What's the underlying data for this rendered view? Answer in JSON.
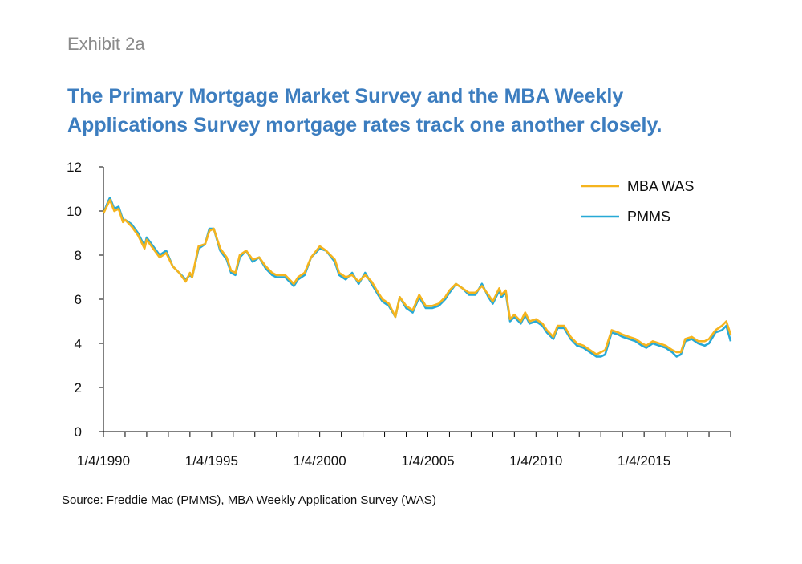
{
  "header": {
    "exhibit_label": "Exhibit 2a",
    "title_line1": "The Primary Mortgage Market Survey and the MBA Weekly",
    "title_line2": "Applications Survey mortgage rates track one another closely."
  },
  "footer": {
    "source": "Source: Freddie Mac (PMMS), MBA Weekly Application Survey (WAS)"
  },
  "colors": {
    "exhibit": "#8a8a8a",
    "rule": "#8cc63f",
    "title": "#3c7dbf",
    "mba_was": "#f5b41e",
    "pmms": "#27a9d6"
  },
  "chart_data": {
    "type": "line",
    "title": "",
    "xlabel": "",
    "ylabel": "",
    "ylim": [
      0,
      12
    ],
    "yticks": [
      0,
      2,
      4,
      6,
      8,
      10,
      12
    ],
    "xlim": [
      1990.0,
      2019.0
    ],
    "xtick_labels": [
      "1/4/1990",
      "1/4/1995",
      "1/4/2000",
      "1/4/2005",
      "1/4/2010",
      "1/4/2015"
    ],
    "xtick_values": [
      1990,
      1995,
      2000,
      2005,
      2010,
      2015
    ],
    "legend_position": "top-right",
    "grid": false,
    "series": [
      {
        "name": "MBA WAS",
        "color": "#f5b41e",
        "x": [
          1990.0,
          1990.2,
          1990.3,
          1990.5,
          1990.7,
          1990.9,
          1991.0,
          1991.3,
          1991.6,
          1991.9,
          1992.0,
          1992.3,
          1992.6,
          1992.9,
          1993.2,
          1993.5,
          1993.8,
          1994.0,
          1994.1,
          1994.4,
          1994.7,
          1994.9,
          1995.1,
          1995.4,
          1995.7,
          1995.9,
          1996.1,
          1996.3,
          1996.6,
          1996.9,
          1997.2,
          1997.5,
          1997.8,
          1998.0,
          1998.4,
          1998.8,
          1999.0,
          1999.3,
          1999.6,
          2000.0,
          2000.3,
          2000.7,
          2000.9,
          2001.2,
          2001.5,
          2001.8,
          2002.1,
          2002.4,
          2002.7,
          2002.9,
          2003.2,
          2003.5,
          2003.7,
          2004.0,
          2004.3,
          2004.6,
          2004.9,
          2005.2,
          2005.5,
          2005.8,
          2006.0,
          2006.3,
          2006.6,
          2006.9,
          2007.2,
          2007.5,
          2007.8,
          2008.0,
          2008.3,
          2008.4,
          2008.6,
          2008.8,
          2009.0,
          2009.3,
          2009.5,
          2009.7,
          2010.0,
          2010.3,
          2010.5,
          2010.8,
          2011.0,
          2011.3,
          2011.6,
          2011.9,
          2012.2,
          2012.5,
          2012.8,
          2013.0,
          2013.2,
          2013.5,
          2013.8,
          2014.0,
          2014.3,
          2014.6,
          2014.9,
          2015.1,
          2015.4,
          2015.7,
          2016.0,
          2016.3,
          2016.5,
          2016.7,
          2016.9,
          2017.2,
          2017.5,
          2017.8,
          2018.0,
          2018.3,
          2018.6,
          2018.8,
          2019.0
        ],
        "values": [
          9.9,
          10.3,
          10.5,
          10.0,
          10.1,
          9.5,
          9.6,
          9.3,
          8.9,
          8.3,
          8.7,
          8.3,
          7.9,
          8.1,
          7.5,
          7.2,
          6.8,
          7.2,
          7.0,
          8.4,
          8.5,
          9.1,
          9.2,
          8.3,
          7.9,
          7.3,
          7.2,
          8.0,
          8.2,
          7.8,
          7.9,
          7.5,
          7.2,
          7.1,
          7.1,
          6.7,
          7.0,
          7.2,
          7.9,
          8.4,
          8.2,
          7.8,
          7.2,
          7.0,
          7.1,
          6.8,
          7.1,
          6.8,
          6.3,
          6.0,
          5.8,
          5.2,
          6.1,
          5.7,
          5.5,
          6.2,
          5.7,
          5.7,
          5.8,
          6.1,
          6.4,
          6.7,
          6.5,
          6.3,
          6.3,
          6.6,
          6.2,
          5.9,
          6.5,
          6.2,
          6.4,
          5.1,
          5.3,
          5.0,
          5.4,
          5.0,
          5.1,
          4.9,
          4.6,
          4.3,
          4.8,
          4.8,
          4.3,
          4.0,
          3.9,
          3.7,
          3.5,
          3.6,
          3.7,
          4.6,
          4.5,
          4.4,
          4.3,
          4.2,
          4.0,
          3.9,
          4.1,
          4.0,
          3.9,
          3.7,
          3.6,
          3.6,
          4.2,
          4.3,
          4.1,
          4.1,
          4.2,
          4.6,
          4.8,
          5.0,
          4.4
        ]
      },
      {
        "name": "PMMS",
        "color": "#27a9d6",
        "x": [
          1990.0,
          1990.2,
          1990.3,
          1990.5,
          1990.7,
          1990.9,
          1991.0,
          1991.3,
          1991.6,
          1991.9,
          1992.0,
          1992.3,
          1992.6,
          1992.9,
          1993.2,
          1993.5,
          1993.8,
          1994.0,
          1994.1,
          1994.4,
          1994.7,
          1994.9,
          1995.1,
          1995.4,
          1995.7,
          1995.9,
          1996.1,
          1996.3,
          1996.6,
          1996.9,
          1997.2,
          1997.5,
          1997.8,
          1998.0,
          1998.4,
          1998.8,
          1999.0,
          1999.3,
          1999.6,
          2000.0,
          2000.3,
          2000.7,
          2000.9,
          2001.2,
          2001.5,
          2001.8,
          2002.1,
          2002.4,
          2002.7,
          2002.9,
          2003.2,
          2003.5,
          2003.7,
          2004.0,
          2004.3,
          2004.6,
          2004.9,
          2005.2,
          2005.5,
          2005.8,
          2006.0,
          2006.3,
          2006.6,
          2006.9,
          2007.2,
          2007.5,
          2007.8,
          2008.0,
          2008.3,
          2008.4,
          2008.6,
          2008.8,
          2009.0,
          2009.3,
          2009.5,
          2009.7,
          2010.0,
          2010.3,
          2010.5,
          2010.8,
          2011.0,
          2011.3,
          2011.6,
          2011.9,
          2012.2,
          2012.5,
          2012.8,
          2013.0,
          2013.2,
          2013.5,
          2013.8,
          2014.0,
          2014.3,
          2014.6,
          2014.9,
          2015.1,
          2015.4,
          2015.7,
          2016.0,
          2016.3,
          2016.5,
          2016.7,
          2016.9,
          2017.2,
          2017.5,
          2017.8,
          2018.0,
          2018.3,
          2018.6,
          2018.8,
          2019.0
        ],
        "values": [
          9.9,
          10.4,
          10.6,
          10.1,
          10.2,
          9.6,
          9.6,
          9.4,
          9.0,
          8.4,
          8.8,
          8.4,
          8.0,
          8.2,
          7.5,
          7.2,
          6.9,
          7.1,
          7.0,
          8.3,
          8.5,
          9.2,
          9.2,
          8.2,
          7.8,
          7.2,
          7.1,
          7.9,
          8.2,
          7.7,
          7.9,
          7.4,
          7.1,
          7.0,
          7.0,
          6.6,
          6.9,
          7.1,
          7.9,
          8.3,
          8.2,
          7.7,
          7.1,
          6.9,
          7.2,
          6.7,
          7.2,
          6.7,
          6.2,
          5.9,
          5.7,
          5.2,
          6.1,
          5.6,
          5.4,
          6.1,
          5.6,
          5.6,
          5.7,
          6.0,
          6.3,
          6.7,
          6.5,
          6.2,
          6.2,
          6.7,
          6.1,
          5.8,
          6.4,
          6.1,
          6.3,
          5.0,
          5.2,
          4.9,
          5.3,
          4.9,
          5.0,
          4.8,
          4.5,
          4.2,
          4.7,
          4.7,
          4.2,
          3.9,
          3.8,
          3.6,
          3.4,
          3.4,
          3.5,
          4.5,
          4.4,
          4.3,
          4.2,
          4.1,
          3.9,
          3.8,
          4.0,
          3.9,
          3.8,
          3.6,
          3.4,
          3.5,
          4.1,
          4.2,
          4.0,
          3.9,
          4.0,
          4.5,
          4.6,
          4.8,
          4.1
        ]
      }
    ]
  }
}
